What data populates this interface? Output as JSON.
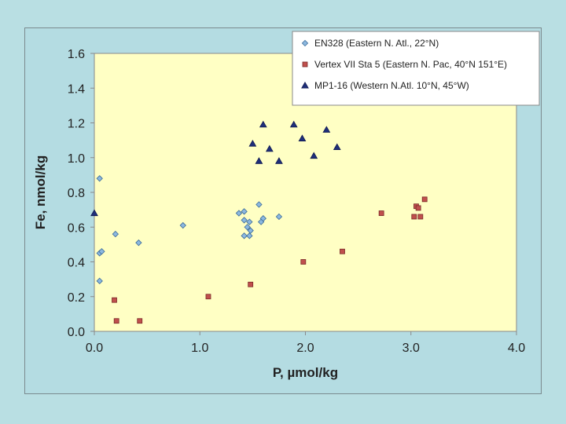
{
  "chart_data": {
    "type": "scatter",
    "title": "",
    "xlabel": "P, µmol/kg",
    "ylabel": "Fe, nmol/kg",
    "xlim": [
      0.0,
      4.0
    ],
    "ylim": [
      0.0,
      1.6
    ],
    "xticks": [
      "0.0",
      "1.0",
      "2.0",
      "3.0",
      "4.0"
    ],
    "yticks": [
      "0.0",
      "0.2",
      "0.4",
      "0.6",
      "0.8",
      "1.0",
      "1.2",
      "1.4",
      "1.6"
    ],
    "grid": false,
    "legend_position": "top-right",
    "series": [
      {
        "name": "EN328 (Eastern N. Atl., 22°N)",
        "marker": "diamond",
        "color": "#8cb8e0",
        "edge": "#3a6a98",
        "points": [
          [
            0.05,
            0.88
          ],
          [
            0.05,
            0.45
          ],
          [
            0.07,
            0.46
          ],
          [
            0.05,
            0.29
          ],
          [
            0.2,
            0.56
          ],
          [
            0.42,
            0.51
          ],
          [
            0.84,
            0.61
          ],
          [
            1.37,
            0.68
          ],
          [
            1.42,
            0.69
          ],
          [
            1.42,
            0.64
          ],
          [
            1.45,
            0.6
          ],
          [
            1.47,
            0.63
          ],
          [
            1.48,
            0.58
          ],
          [
            1.42,
            0.55
          ],
          [
            1.47,
            0.55
          ],
          [
            1.56,
            0.73
          ],
          [
            1.58,
            0.63
          ],
          [
            1.6,
            0.65
          ],
          [
            1.75,
            0.66
          ]
        ]
      },
      {
        "name": "Vertex VII Sta 5 (Eastern N. Pac, 40°N 151°E)",
        "marker": "square",
        "color": "#c0504d",
        "edge": "#7a2a28",
        "points": [
          [
            0.19,
            0.18
          ],
          [
            0.21,
            0.06
          ],
          [
            0.43,
            0.06
          ],
          [
            1.08,
            0.2
          ],
          [
            1.48,
            0.27
          ],
          [
            1.98,
            0.4
          ],
          [
            2.35,
            0.46
          ],
          [
            2.72,
            0.68
          ],
          [
            3.03,
            0.66
          ],
          [
            3.05,
            0.72
          ],
          [
            3.07,
            0.71
          ],
          [
            3.09,
            0.66
          ],
          [
            3.13,
            0.76
          ]
        ]
      },
      {
        "name": "MP1-16 (Western N.Atl. 10°N, 45°W)",
        "marker": "triangle",
        "color": "#1f2f7a",
        "edge": "#0f1850",
        "points": [
          [
            0.0,
            0.68
          ],
          [
            1.5,
            1.08
          ],
          [
            1.56,
            0.98
          ],
          [
            1.6,
            1.19
          ],
          [
            1.66,
            1.05
          ],
          [
            1.75,
            0.98
          ],
          [
            1.89,
            1.19
          ],
          [
            1.97,
            1.11
          ],
          [
            2.08,
            1.01
          ],
          [
            2.2,
            1.16
          ],
          [
            2.3,
            1.06
          ]
        ]
      }
    ]
  }
}
